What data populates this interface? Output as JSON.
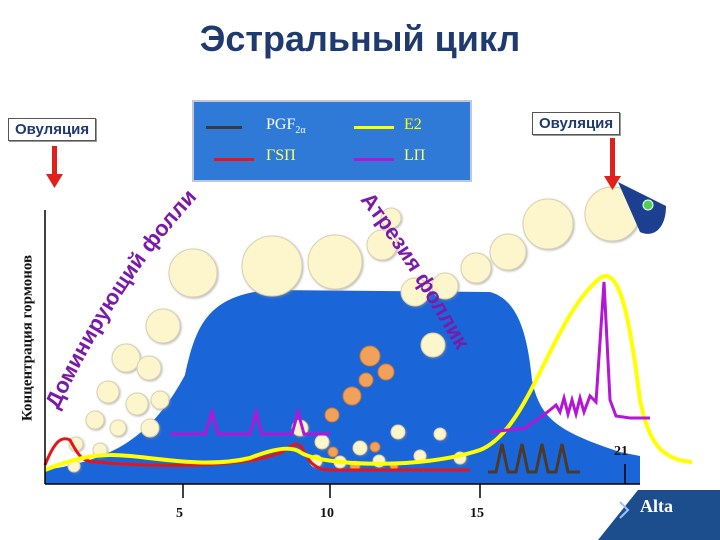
{
  "title": "Эстральный цикл",
  "ovulation_left": "Овуляция",
  "ovulation_right": "Овуляция",
  "y_axis_label": "Концентрация гормонов",
  "dominant_label": "Доминирующий фолликул",
  "atresia_label": "Атрезия фолликула",
  "legend": {
    "pgf": {
      "label": "PGF",
      "sub": "2α",
      "color": "#3a3a3a"
    },
    "e2": {
      "label": "E2",
      "color": "#ffff00"
    },
    "fsh": {
      "label": "ГSП",
      "color": "#e8141a"
    },
    "lh": {
      "label": "LП",
      "color": "#b316d6"
    }
  },
  "x_ticks": [
    "5",
    "10",
    "15"
  ],
  "day_marker": "21",
  "logo": "Alta",
  "colors": {
    "body": "#1a66d9",
    "follicle": "#fdf6cc",
    "follicle_large": "#f0e6c8",
    "corpus": "#f2a15a",
    "arrow": "#e0201a"
  }
}
